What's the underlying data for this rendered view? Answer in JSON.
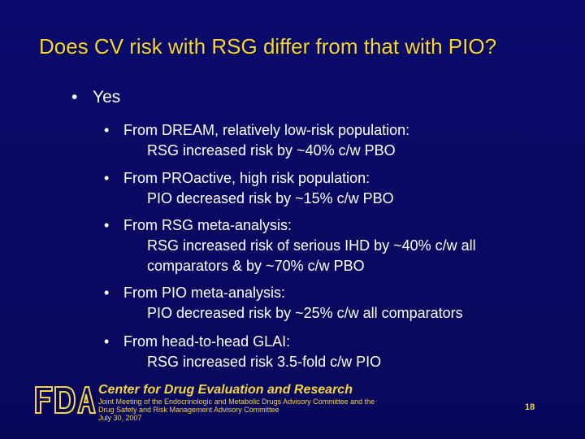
{
  "slide": {
    "title": "Does CV risk with RSG differ from that with PIO?",
    "main_bullet": {
      "marker": "•",
      "text": "Yes"
    },
    "sub_bullets": [
      {
        "marker": "•",
        "line1": "From DREAM, relatively low-risk population:",
        "continuation": [
          "RSG increased risk by ~40% c/w PBO"
        ]
      },
      {
        "marker": "•",
        "line1": "From PROactive, high risk population:",
        "continuation": [
          "PIO decreased risk by ~15% c/w PBO"
        ]
      },
      {
        "marker": "•",
        "line1": "From RSG meta-analysis:",
        "continuation": [
          "RSG increased risk of serious IHD by ~40% c/w all",
          "comparators & by ~70% c/w PBO"
        ]
      },
      {
        "marker": "•",
        "line1": "From PIO meta-analysis:",
        "continuation": [
          "PIO decreased risk by ~25% c/w all comparators"
        ]
      },
      {
        "marker": "•",
        "line1": "From head-to-head GLAI:",
        "continuation": [
          "RSG increased risk 3.5-fold c/w PIO"
        ]
      }
    ]
  },
  "footer": {
    "logo_text": "FDA",
    "center_name": "Center for Drug Evaluation and Research",
    "meeting_lines": [
      "Joint Meeting of the Endocrinologic and Metabolic Drugs Advisory Committee and the",
      "Drug Safety and Risk Management Advisory Committee",
      "July 30, 2007"
    ],
    "page_number": "18"
  },
  "colors": {
    "background": "#0a0a63",
    "title": "#f5d442",
    "body_text": "#ffffff",
    "footer_text": "#f5d442"
  }
}
